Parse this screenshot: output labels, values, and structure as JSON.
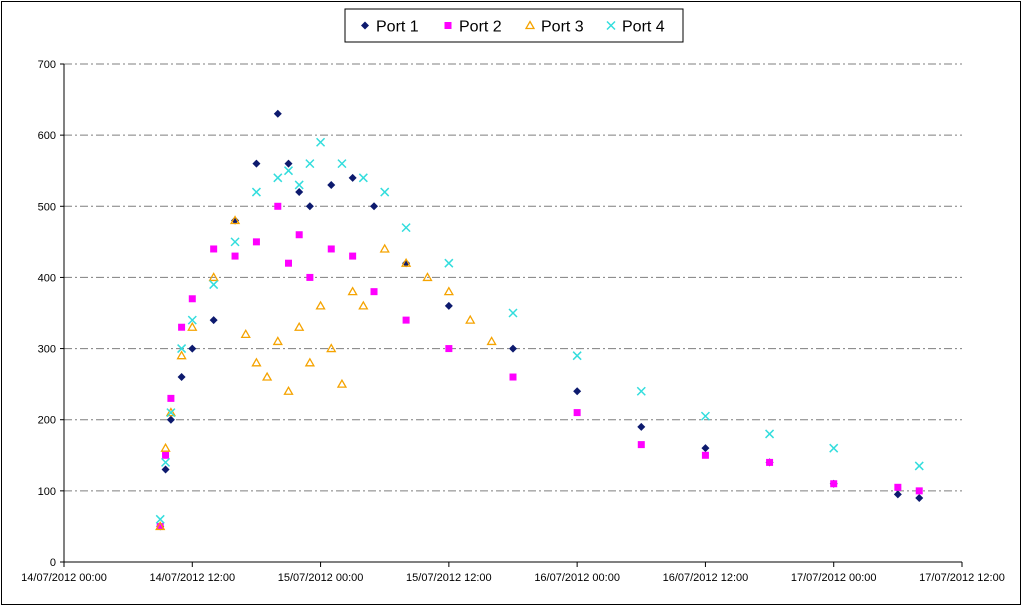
{
  "chart_data": {
    "type": "scatter",
    "title": "",
    "xlabel": "",
    "ylabel": "",
    "ylim": [
      0,
      700
    ],
    "yticks": [
      0,
      100,
      200,
      300,
      400,
      500,
      600,
      700
    ],
    "xlim": [
      "14/07/2012 00:00",
      "17/07/2012 12:00"
    ],
    "xticks": [
      "14/07/2012 00:00",
      "14/07/2012 12:00",
      "15/07/2012 00:00",
      "15/07/2012 12:00",
      "16/07/2012 00:00",
      "16/07/2012 12:00",
      "17/07/2012 00:00",
      "17/07/2012 12:00"
    ],
    "grid": "horizontal dash-dot",
    "legend_position": "top-center",
    "series": [
      {
        "name": "Port 1",
        "marker": "diamond",
        "color": "#0d1a6e",
        "x": [
          "14/07/2012 09:00",
          "14/07/2012 09:30",
          "14/07/2012 10:00",
          "14/07/2012 11:00",
          "14/07/2012 12:00",
          "14/07/2012 14:00",
          "14/07/2012 16:00",
          "14/07/2012 18:00",
          "14/07/2012 20:00",
          "14/07/2012 21:00",
          "14/07/2012 22:00",
          "14/07/2012 23:00",
          "15/07/2012 01:00",
          "15/07/2012 03:00",
          "15/07/2012 05:00",
          "15/07/2012 08:00",
          "15/07/2012 12:00",
          "15/07/2012 18:00",
          "16/07/2012 00:00",
          "16/07/2012 06:00",
          "16/07/2012 12:00",
          "16/07/2012 18:00",
          "17/07/2012 00:00",
          "17/07/2012 06:00",
          "17/07/2012 08:00"
        ],
        "y": [
          50,
          130,
          200,
          260,
          300,
          340,
          480,
          560,
          630,
          560,
          520,
          500,
          530,
          540,
          500,
          420,
          360,
          300,
          240,
          190,
          160,
          140,
          110,
          95,
          90
        ]
      },
      {
        "name": "Port 2",
        "marker": "square",
        "color": "#ff00ff",
        "x": [
          "14/07/2012 09:00",
          "14/07/2012 09:30",
          "14/07/2012 10:00",
          "14/07/2012 11:00",
          "14/07/2012 12:00",
          "14/07/2012 14:00",
          "14/07/2012 16:00",
          "14/07/2012 18:00",
          "14/07/2012 20:00",
          "14/07/2012 21:00",
          "14/07/2012 22:00",
          "14/07/2012 23:00",
          "15/07/2012 01:00",
          "15/07/2012 03:00",
          "15/07/2012 05:00",
          "15/07/2012 08:00",
          "15/07/2012 12:00",
          "15/07/2012 18:00",
          "16/07/2012 00:00",
          "16/07/2012 06:00",
          "16/07/2012 12:00",
          "16/07/2012 18:00",
          "17/07/2012 00:00",
          "17/07/2012 06:00",
          "17/07/2012 08:00"
        ],
        "y": [
          50,
          150,
          230,
          330,
          370,
          440,
          430,
          450,
          500,
          420,
          460,
          400,
          440,
          430,
          380,
          340,
          300,
          260,
          210,
          165,
          150,
          140,
          110,
          105,
          100
        ]
      },
      {
        "name": "Port 3",
        "marker": "triangle",
        "color": "#f5a300",
        "x": [
          "14/07/2012 09:00",
          "14/07/2012 09:30",
          "14/07/2012 10:00",
          "14/07/2012 11:00",
          "14/07/2012 12:00",
          "14/07/2012 14:00",
          "14/07/2012 16:00",
          "14/07/2012 17:00",
          "14/07/2012 18:00",
          "14/07/2012 19:00",
          "14/07/2012 20:00",
          "14/07/2012 21:00",
          "14/07/2012 22:00",
          "14/07/2012 23:00",
          "15/07/2012 00:00",
          "15/07/2012 01:00",
          "15/07/2012 02:00",
          "15/07/2012 03:00",
          "15/07/2012 04:00",
          "15/07/2012 06:00",
          "15/07/2012 08:00",
          "15/07/2012 10:00",
          "15/07/2012 12:00",
          "15/07/2012 14:00",
          "15/07/2012 16:00"
        ],
        "y": [
          50,
          160,
          210,
          290,
          330,
          400,
          480,
          320,
          280,
          260,
          310,
          240,
          330,
          280,
          360,
          300,
          250,
          380,
          360,
          440,
          420,
          400,
          380,
          340,
          310
        ]
      },
      {
        "name": "Port 4",
        "marker": "x",
        "color": "#33dddd",
        "x": [
          "14/07/2012 09:00",
          "14/07/2012 09:30",
          "14/07/2012 10:00",
          "14/07/2012 11:00",
          "14/07/2012 12:00",
          "14/07/2012 14:00",
          "14/07/2012 16:00",
          "14/07/2012 18:00",
          "14/07/2012 20:00",
          "14/07/2012 21:00",
          "14/07/2012 22:00",
          "14/07/2012 23:00",
          "15/07/2012 00:00",
          "15/07/2012 02:00",
          "15/07/2012 04:00",
          "15/07/2012 06:00",
          "15/07/2012 08:00",
          "15/07/2012 12:00",
          "15/07/2012 18:00",
          "16/07/2012 00:00",
          "16/07/2012 06:00",
          "16/07/2012 12:00",
          "16/07/2012 18:00",
          "17/07/2012 00:00",
          "17/07/2012 08:00"
        ],
        "y": [
          60,
          140,
          210,
          300,
          340,
          390,
          450,
          520,
          540,
          550,
          530,
          560,
          590,
          560,
          540,
          520,
          470,
          420,
          350,
          290,
          240,
          205,
          180,
          160,
          135
        ]
      }
    ]
  }
}
